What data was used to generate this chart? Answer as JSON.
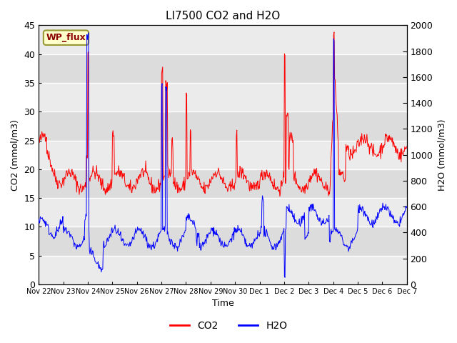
{
  "title": "LI7500 CO2 and H2O",
  "xlabel": "Time",
  "ylabel_left": "CO2 (mmol/m3)",
  "ylabel_right": "H2O (mmol/m3)",
  "ylim_left": [
    0,
    45
  ],
  "ylim_right": [
    0,
    2000
  ],
  "annotation": "WP_flux",
  "legend_labels": [
    "CO2",
    "H2O"
  ],
  "line_colors": [
    "red",
    "blue"
  ],
  "facecolor": "#dcdcdc",
  "xtick_labels": [
    "Nov 22",
    "Nov 23",
    "Nov 24",
    "Nov 25",
    "Nov 26",
    "Nov 27",
    "Nov 28",
    "Nov 29",
    "Nov 30",
    "Dec 1",
    "Dec 2",
    "Dec 3",
    "Dec 4",
    "Dec 5",
    "Dec 6",
    "Dec 7"
  ],
  "xtick_positions": [
    0,
    24,
    48,
    72,
    96,
    120,
    144,
    168,
    192,
    216,
    240,
    264,
    288,
    312,
    336,
    360
  ],
  "yticks_left": [
    0,
    5,
    10,
    15,
    20,
    25,
    30,
    35,
    40,
    45
  ],
  "yticks_right": [
    0,
    200,
    400,
    600,
    800,
    1000,
    1200,
    1400,
    1600,
    1800,
    2000
  ]
}
